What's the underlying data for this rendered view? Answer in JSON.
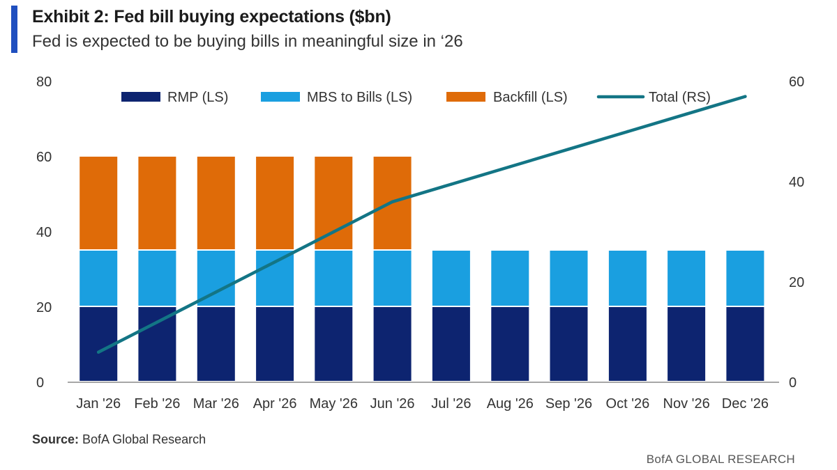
{
  "header": {
    "title": "Exhibit 2: Fed bill buying expectations ($bn)",
    "subtitle": "Fed is expected to be buying bills in meaningful size in ‘26"
  },
  "footer": {
    "source_label": "Source:",
    "source_text": " BofA Global Research",
    "brand": "BofA GLOBAL RESEARCH"
  },
  "colors": {
    "accent": "#1f4fbf",
    "rmp": "#0d2470",
    "mbs": "#1a9fe0",
    "backfill": "#df6b08",
    "total": "#137585"
  },
  "chart_data": {
    "type": "bar",
    "stacked": true,
    "categories": [
      "Jan '26",
      "Feb '26",
      "Mar '26",
      "Apr '26",
      "May '26",
      "Jun '26",
      "Jul '26",
      "Aug '26",
      "Sep '26",
      "Oct '26",
      "Nov '26",
      "Dec '26"
    ],
    "series": [
      {
        "name": "RMP (LS)",
        "axis": "left",
        "type": "bar",
        "values": [
          20,
          20,
          20,
          20,
          20,
          20,
          20,
          20,
          20,
          20,
          20,
          20
        ]
      },
      {
        "name": "MBS to Bills (LS)",
        "axis": "left",
        "type": "bar",
        "values": [
          15,
          15,
          15,
          15,
          15,
          15,
          15,
          15,
          15,
          15,
          15,
          15
        ]
      },
      {
        "name": "Backfill (LS)",
        "axis": "left",
        "type": "bar",
        "values": [
          25,
          25,
          25,
          25,
          25,
          25,
          0,
          0,
          0,
          0,
          0,
          0
        ]
      },
      {
        "name": "Total (RS)",
        "axis": "right",
        "type": "line",
        "values": [
          60,
          120,
          180,
          240,
          300,
          360,
          395,
          430,
          465,
          500,
          535,
          570
        ]
      }
    ],
    "left_axis": {
      "ylim": [
        0,
        80
      ],
      "ticks": [
        "0",
        "20",
        "40",
        "60",
        "80"
      ]
    },
    "right_axis": {
      "ylim": [
        0,
        600
      ],
      "ticks": [
        "0",
        "20",
        "40",
        "60"
      ]
    },
    "legend": "top",
    "grid": false
  }
}
